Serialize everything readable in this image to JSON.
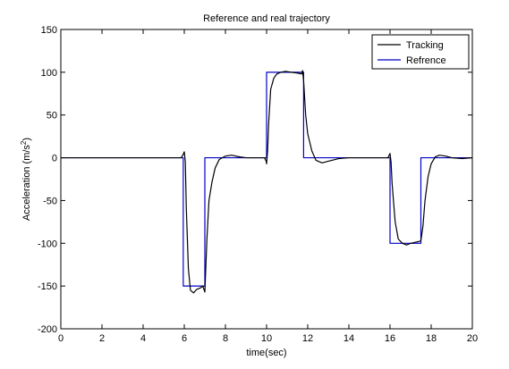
{
  "chart_data": {
    "type": "line",
    "title": "Reference and real trajectory",
    "xlabel": "time(sec)",
    "ylabel_main": "Acceleration (m/s",
    "ylabel_sup": "2",
    "ylabel_close": ")",
    "xlim": [
      0,
      20
    ],
    "ylim": [
      -200,
      150
    ],
    "xticks": [
      0,
      2,
      4,
      6,
      8,
      10,
      12,
      14,
      16,
      18,
      20
    ],
    "yticks": [
      -200,
      -150,
      -100,
      -50,
      0,
      50,
      100,
      150
    ],
    "grid": false,
    "legend_position": "top-right",
    "series": [
      {
        "name": "Tracking",
        "color": "#000000",
        "x": [
          0,
          5.85,
          5.95,
          6.0,
          6.05,
          6.1,
          6.2,
          6.3,
          6.45,
          6.6,
          6.8,
          6.9,
          7.0,
          7.1,
          7.2,
          7.35,
          7.5,
          7.7,
          8.0,
          8.3,
          8.7,
          9.0,
          9.5,
          9.9,
          9.98,
          10.0,
          10.05,
          10.1,
          10.2,
          10.35,
          10.5,
          10.7,
          10.9,
          11.2,
          11.5,
          11.7,
          11.75,
          11.8,
          11.85,
          11.9,
          12.0,
          12.2,
          12.4,
          12.7,
          13.0,
          13.5,
          14.0,
          15.0,
          15.9,
          16.0,
          16.05,
          16.1,
          16.25,
          16.4,
          16.6,
          16.8,
          17.0,
          17.2,
          17.4,
          17.5,
          17.6,
          17.7,
          17.85,
          18.0,
          18.2,
          18.4,
          18.7,
          19.0,
          19.5,
          20.0
        ],
        "y": [
          0,
          0,
          4,
          7,
          -5,
          -60,
          -130,
          -155,
          -158,
          -154,
          -152,
          -150,
          -157,
          -95,
          -50,
          -28,
          -12,
          -2,
          2,
          3,
          1,
          0,
          0,
          0,
          -4,
          -7,
          8,
          40,
          80,
          93,
          98,
          100,
          101,
          100,
          99,
          98,
          102,
          90,
          70,
          50,
          28,
          8,
          -3,
          -6,
          -4,
          -1,
          0,
          0,
          0,
          5,
          -5,
          -30,
          -75,
          -95,
          -100,
          -102,
          -100,
          -99,
          -98,
          -97,
          -80,
          -50,
          -22,
          -7,
          1,
          3,
          2,
          0,
          -1,
          0
        ]
      },
      {
        "name": "Refrence",
        "color": "#0000cc",
        "x": [
          0,
          5.95,
          5.95,
          7.0,
          7.0,
          10.0,
          10.0,
          11.8,
          11.8,
          16.0,
          16.0,
          17.5,
          17.5,
          20.0
        ],
        "y": [
          0,
          0,
          -150,
          -150,
          0,
          0,
          100,
          100,
          0,
          0,
          -100,
          -100,
          0,
          0
        ]
      }
    ]
  }
}
